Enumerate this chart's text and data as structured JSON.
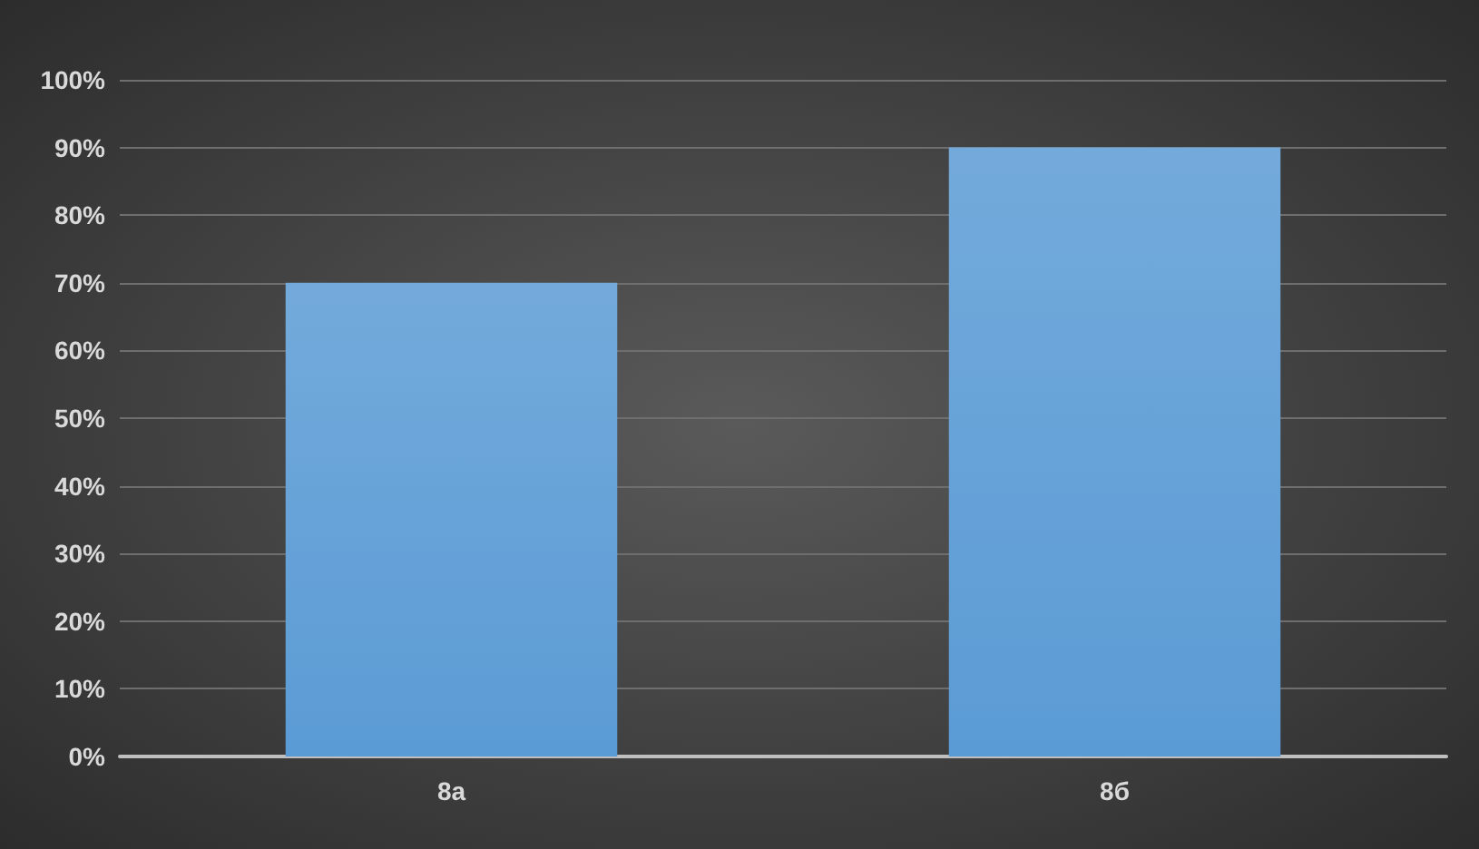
{
  "chart_data": {
    "type": "bar",
    "categories": [
      "8а",
      "8б"
    ],
    "values": [
      70,
      90
    ],
    "color": "#5b9bd5",
    "ylim": [
      0,
      100
    ],
    "yticks": [
      {
        "value": 0,
        "label": "0%"
      },
      {
        "value": 10,
        "label": "10%"
      },
      {
        "value": 20,
        "label": "20%"
      },
      {
        "value": 30,
        "label": "30%"
      },
      {
        "value": 40,
        "label": "40%"
      },
      {
        "value": 50,
        "label": "50%"
      },
      {
        "value": 60,
        "label": "60%"
      },
      {
        "value": 70,
        "label": "70%"
      },
      {
        "value": 80,
        "label": "80%"
      },
      {
        "value": 90,
        "label": "90%"
      },
      {
        "value": 100,
        "label": "100%"
      }
    ],
    "grid": "y"
  }
}
